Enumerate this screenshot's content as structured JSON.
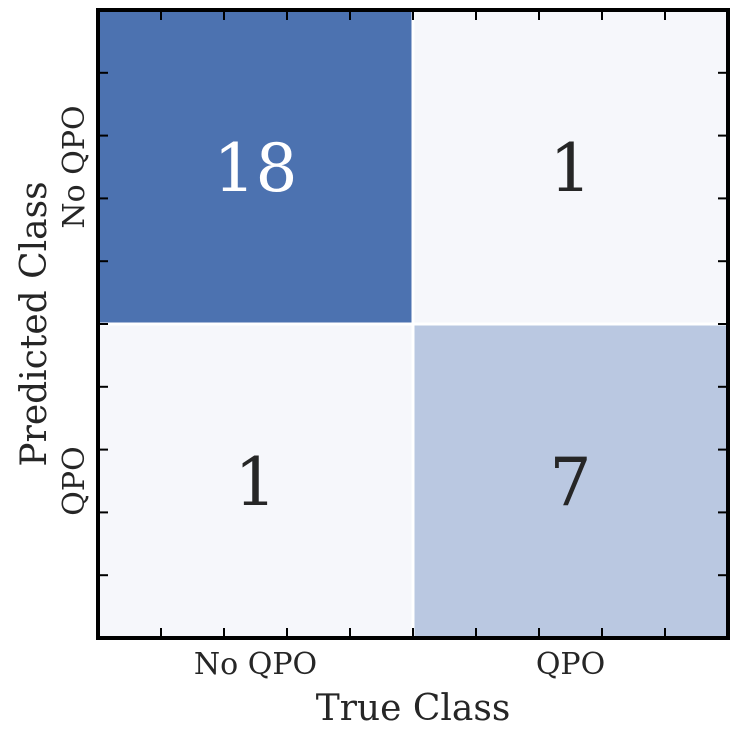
{
  "chart_data": {
    "type": "heatmap",
    "title": "",
    "xlabel": "True Class",
    "ylabel": "Predicted Class",
    "x_categories": [
      "No QPO",
      "QPO"
    ],
    "y_categories": [
      "No QPO",
      "QPO"
    ],
    "matrix": [
      [
        18,
        1
      ],
      [
        1,
        7
      ]
    ],
    "colorscale": {
      "min": 1,
      "max": 18,
      "low": "#f6f7fb",
      "high": "#4c72b0"
    },
    "annotation_colors": {
      "dark_cell": "#ffffff",
      "light_cell": "#262626"
    },
    "grid": false,
    "legend": "none"
  }
}
